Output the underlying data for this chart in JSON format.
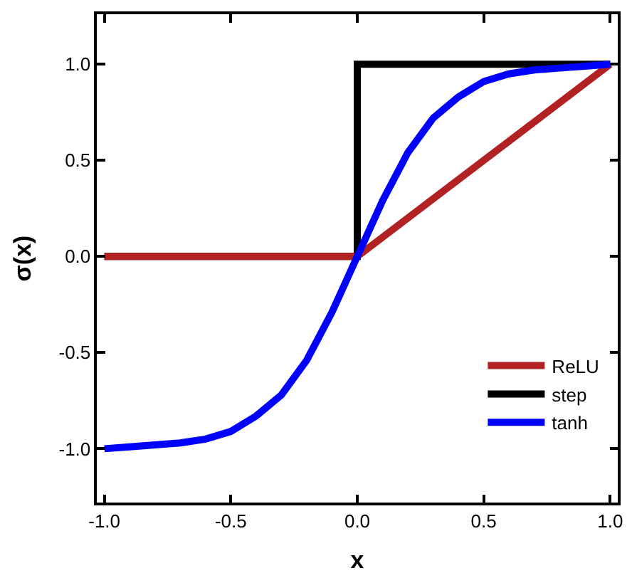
{
  "chart_data": {
    "type": "line",
    "xlabel": "x",
    "ylabel": "σ(x)",
    "xlim": [
      -1.03,
      1.03
    ],
    "ylim": [
      -1.28,
      1.26
    ],
    "xticks": [
      {
        "value": -1,
        "label": "-1.0"
      },
      {
        "value": -0.5,
        "label": "-0.5"
      },
      {
        "value": 0,
        "label": "0.0"
      },
      {
        "value": 0.5,
        "label": "0.5"
      },
      {
        "value": 1,
        "label": "1.0"
      }
    ],
    "yticks": [
      {
        "value": -1,
        "label": "-1.0"
      },
      {
        "value": -0.5,
        "label": "-0.5"
      },
      {
        "value": 0,
        "label": "0.0"
      },
      {
        "value": 0.5,
        "label": "0.5"
      },
      {
        "value": 1,
        "label": "1.0"
      }
    ],
    "legend": "bottom right",
    "line_style": "solid",
    "marker": "none",
    "series": [
      {
        "name": "ReLU",
        "color": "#b22222",
        "x": [
          -1,
          0,
          1
        ],
        "values": [
          0,
          0,
          1
        ]
      },
      {
        "name": "step",
        "color": "#000000",
        "type": "step",
        "x": [
          -1,
          0,
          1
        ],
        "values": [
          0,
          1,
          1
        ]
      },
      {
        "name": "tanh",
        "color": "#0000ff",
        "x": [
          -1,
          -0.9,
          -0.8,
          -0.7,
          -0.6,
          -0.5,
          -0.4,
          -0.3,
          -0.2,
          -0.1,
          0,
          0.1,
          0.2,
          0.3,
          0.4,
          0.5,
          0.6,
          0.7,
          0.8,
          0.9,
          1
        ],
        "values": [
          -1.0,
          -0.99,
          -0.98,
          -0.97,
          -0.95,
          -0.91,
          -0.83,
          -0.72,
          -0.54,
          -0.29,
          0,
          0.29,
          0.54,
          0.72,
          0.83,
          0.91,
          0.95,
          0.97,
          0.98,
          0.99,
          1.0
        ]
      }
    ]
  }
}
